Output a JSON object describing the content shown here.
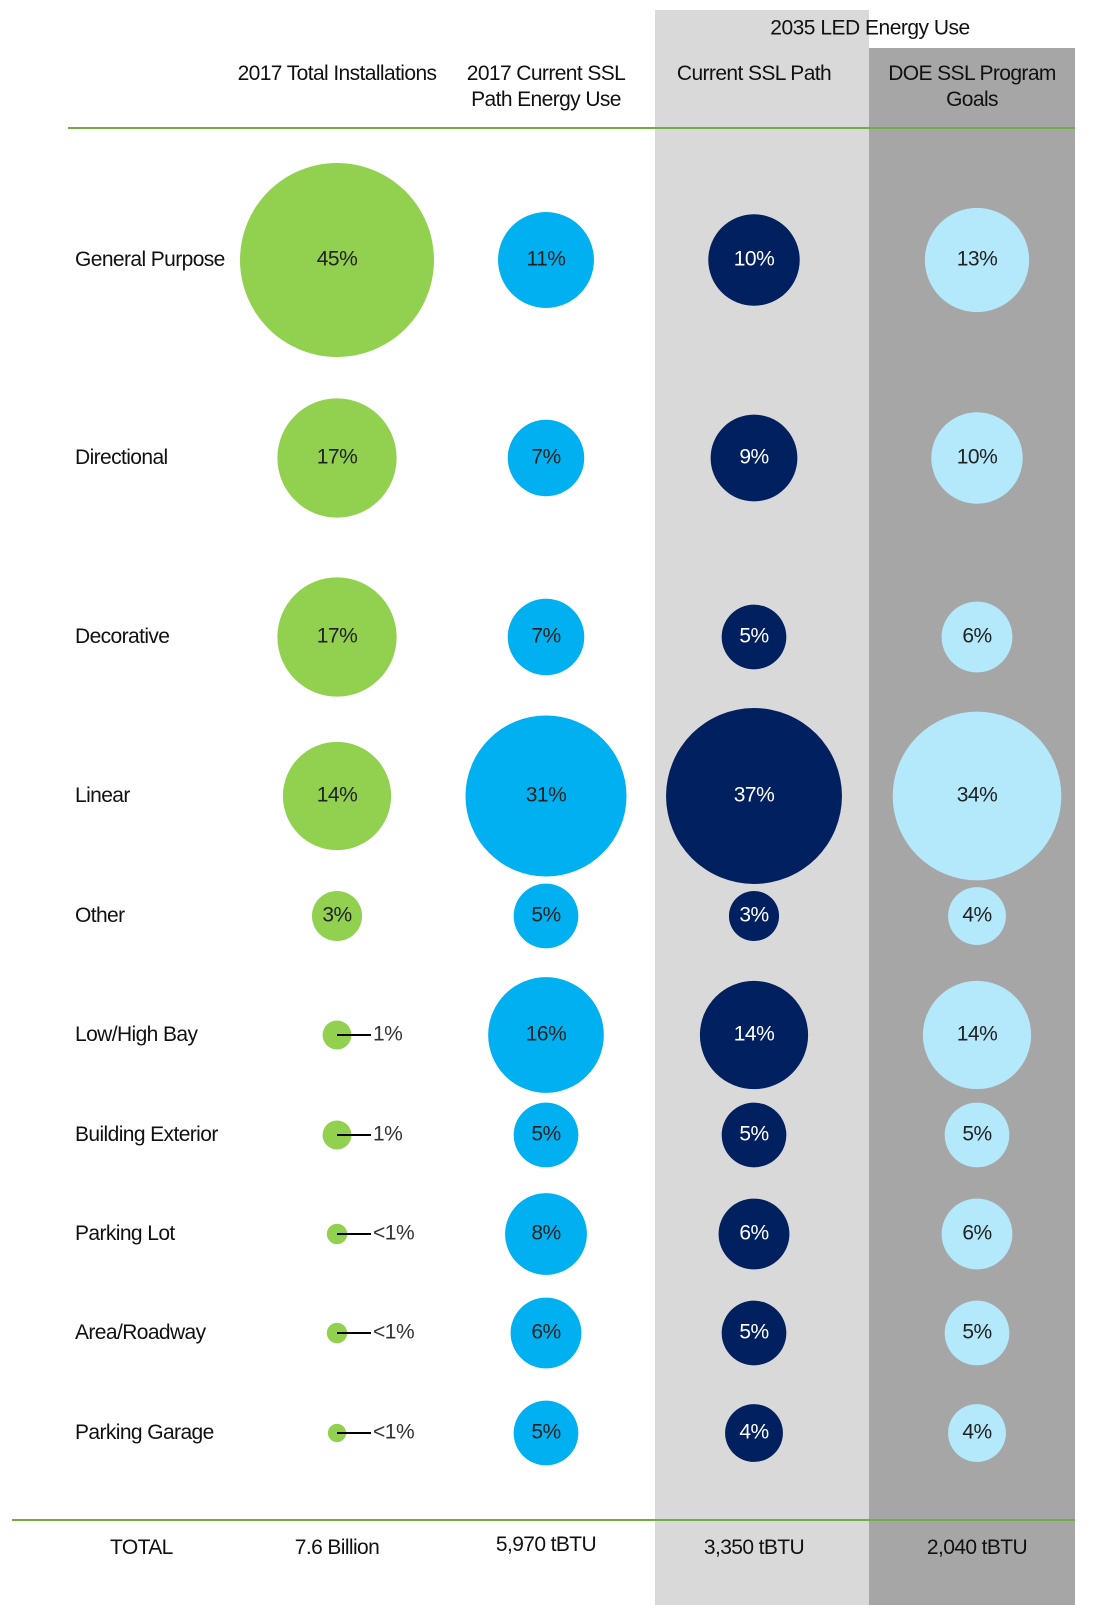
{
  "chart_data": {
    "type": "bubble",
    "group_title": "2035 LED Energy Use",
    "categories": [
      "General Purpose",
      "Directional",
      "Decorative",
      "Linear",
      "Other",
      "Low/High Bay",
      "Building Exterior",
      "Parking Lot",
      "Area/Roadway",
      "Parking Garage"
    ],
    "total_label": "TOTAL",
    "series": [
      {
        "name": "2017 Total Installations",
        "color": "#92d050",
        "text_color": "#222222",
        "band": null,
        "values": [
          45,
          17,
          17,
          14,
          3,
          1,
          1,
          0.5,
          0.5,
          0.4
        ],
        "value_labels": [
          "45%",
          "17%",
          "17%",
          "14%",
          "3%",
          "1%",
          "1%",
          "<1%",
          "<1%",
          "<1%"
        ],
        "total": "7.6 Billion"
      },
      {
        "name": "2017 Current SSL Path Energy Use",
        "color": "#00b0f0",
        "text_color": "#222222",
        "band": null,
        "values": [
          11,
          7,
          7,
          31,
          5,
          16,
          5,
          8,
          6,
          5
        ],
        "value_labels": [
          "11%",
          "7%",
          "7%",
          "31%",
          "5%",
          "16%",
          "5%",
          "8%",
          "6%",
          "5%"
        ],
        "total": "5,970 tBTU"
      },
      {
        "name": "Current SSL Path",
        "color": "#002060",
        "text_color": "#ffffff",
        "band": "#d9d9d9",
        "values": [
          10,
          9,
          5,
          37,
          3,
          14,
          5,
          6,
          5,
          4
        ],
        "value_labels": [
          "10%",
          "9%",
          "5%",
          "37%",
          "3%",
          "14%",
          "5%",
          "6%",
          "5%",
          "4%"
        ],
        "total": "3,350 tBTU"
      },
      {
        "name": "DOE SSL Program Goals",
        "color": "#b4e8fb",
        "text_color": "#222222",
        "band": "#a6a6a6",
        "values": [
          13,
          10,
          6,
          34,
          4,
          14,
          5,
          6,
          5,
          4
        ],
        "value_labels": [
          "13%",
          "10%",
          "6%",
          "34%",
          "4%",
          "14%",
          "5%",
          "6%",
          "5%",
          "4%"
        ],
        "total": "2,040 tBTU"
      }
    ]
  }
}
